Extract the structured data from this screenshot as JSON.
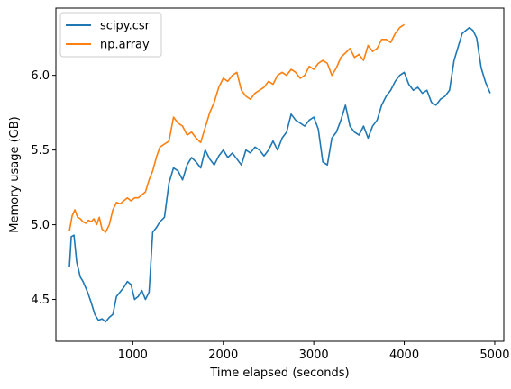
{
  "chart_data": {
    "type": "line",
    "title": "",
    "xlabel": "Time elapsed (seconds)",
    "ylabel": "Memory usage (GB)",
    "xlim": [
      150,
      5100
    ],
    "ylim": [
      4.22,
      6.45
    ],
    "xticks": [
      1000,
      2000,
      3000,
      4000,
      5000
    ],
    "yticks": [
      4.5,
      5.0,
      5.5,
      6.0
    ],
    "ytick_labels": [
      "4.5",
      "5.0",
      "5.5",
      "6.0"
    ],
    "grid": false,
    "legend_position": "top-left",
    "series": [
      {
        "name": "scipy.csr",
        "color": "#1f77b4",
        "x": [
          300,
          320,
          350,
          380,
          420,
          450,
          500,
          540,
          580,
          620,
          660,
          700,
          740,
          780,
          820,
          860,
          900,
          940,
          980,
          1020,
          1060,
          1100,
          1140,
          1180,
          1220,
          1260,
          1300,
          1350,
          1400,
          1450,
          1500,
          1550,
          1600,
          1650,
          1700,
          1750,
          1800,
          1850,
          1900,
          1950,
          2000,
          2050,
          2100,
          2150,
          2200,
          2250,
          2300,
          2350,
          2400,
          2450,
          2500,
          2550,
          2600,
          2650,
          2700,
          2750,
          2800,
          2850,
          2900,
          2950,
          3000,
          3050,
          3100,
          3150,
          3200,
          3250,
          3300,
          3350,
          3400,
          3450,
          3500,
          3550,
          3600,
          3650,
          3700,
          3750,
          3800,
          3850,
          3900,
          3950,
          4000,
          4050,
          4100,
          4150,
          4200,
          4250,
          4300,
          4350,
          4400,
          4450,
          4500,
          4550,
          4600,
          4640,
          4680,
          4720,
          4760,
          4800,
          4850,
          4900,
          4950
        ],
        "y": [
          4.72,
          4.92,
          4.93,
          4.75,
          4.65,
          4.62,
          4.55,
          4.48,
          4.4,
          4.36,
          4.37,
          4.35,
          4.38,
          4.4,
          4.52,
          4.55,
          4.58,
          4.62,
          4.6,
          4.5,
          4.52,
          4.56,
          4.5,
          4.55,
          4.95,
          4.98,
          5.02,
          5.05,
          5.28,
          5.38,
          5.36,
          5.3,
          5.4,
          5.45,
          5.42,
          5.38,
          5.5,
          5.44,
          5.4,
          5.46,
          5.5,
          5.45,
          5.48,
          5.44,
          5.4,
          5.5,
          5.48,
          5.52,
          5.5,
          5.46,
          5.5,
          5.56,
          5.5,
          5.58,
          5.62,
          5.74,
          5.7,
          5.68,
          5.66,
          5.7,
          5.72,
          5.64,
          5.42,
          5.4,
          5.58,
          5.62,
          5.7,
          5.8,
          5.66,
          5.62,
          5.6,
          5.66,
          5.58,
          5.66,
          5.7,
          5.8,
          5.86,
          5.9,
          5.96,
          6.0,
          6.02,
          5.94,
          5.9,
          5.92,
          5.88,
          5.9,
          5.82,
          5.8,
          5.84,
          5.86,
          5.9,
          6.1,
          6.2,
          6.28,
          6.3,
          6.32,
          6.3,
          6.25,
          6.05,
          5.95,
          5.88
        ]
      },
      {
        "name": "np.array",
        "color": "#ff7f0e",
        "x": [
          300,
          330,
          360,
          390,
          420,
          450,
          480,
          510,
          540,
          570,
          600,
          630,
          660,
          700,
          740,
          780,
          820,
          860,
          900,
          940,
          980,
          1020,
          1060,
          1100,
          1140,
          1180,
          1220,
          1260,
          1300,
          1350,
          1400,
          1450,
          1500,
          1550,
          1600,
          1650,
          1700,
          1750,
          1800,
          1850,
          1900,
          1950,
          2000,
          2050,
          2100,
          2150,
          2200,
          2250,
          2300,
          2350,
          2400,
          2450,
          2500,
          2550,
          2600,
          2650,
          2700,
          2750,
          2800,
          2850,
          2900,
          2950,
          3000,
          3050,
          3100,
          3150,
          3200,
          3250,
          3300,
          3350,
          3400,
          3450,
          3500,
          3550,
          3600,
          3650,
          3700,
          3750,
          3800,
          3850,
          3900,
          3950,
          4000
        ],
        "y": [
          4.96,
          5.06,
          5.1,
          5.05,
          5.04,
          5.02,
          5.01,
          5.03,
          5.02,
          5.04,
          5.0,
          5.05,
          4.97,
          4.95,
          5.0,
          5.1,
          5.15,
          5.14,
          5.16,
          5.18,
          5.16,
          5.18,
          5.18,
          5.2,
          5.22,
          5.3,
          5.36,
          5.45,
          5.52,
          5.54,
          5.56,
          5.72,
          5.68,
          5.66,
          5.6,
          5.62,
          5.58,
          5.55,
          5.65,
          5.75,
          5.82,
          5.92,
          5.98,
          5.96,
          6.0,
          6.02,
          5.9,
          5.86,
          5.84,
          5.88,
          5.9,
          5.92,
          5.96,
          5.94,
          6.0,
          6.02,
          6.0,
          6.04,
          6.02,
          5.98,
          6.0,
          6.06,
          6.04,
          6.08,
          6.1,
          6.08,
          6.0,
          6.05,
          6.12,
          6.15,
          6.18,
          6.12,
          6.14,
          6.1,
          6.2,
          6.16,
          6.18,
          6.24,
          6.24,
          6.22,
          6.28,
          6.32,
          6.34
        ]
      }
    ]
  }
}
